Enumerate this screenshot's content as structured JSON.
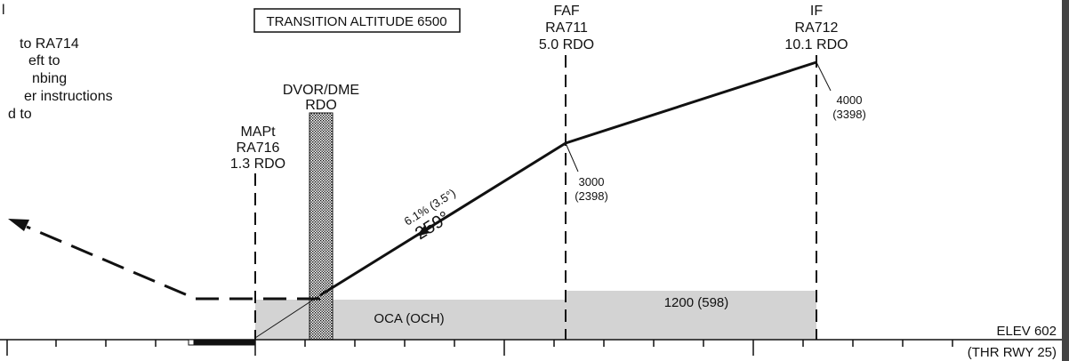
{
  "missed_approach_notes": {
    "lines": [
      "l",
      "to RA714",
      "eft to",
      "nbing",
      "er instructions",
      "d to"
    ]
  },
  "transition_altitude": "TRANSITION ALTITUDE 6500",
  "fixes": {
    "faf": {
      "lines": [
        "FAF",
        "RA711",
        "5.0 RDO"
      ]
    },
    "if": {
      "lines": [
        "IF",
        "RA712",
        "10.1 RDO"
      ]
    },
    "mapt": {
      "lines": [
        "MAPt",
        "RA716",
        "1.3 RDO"
      ]
    },
    "navaid": {
      "lines": [
        "DVOR/DME",
        "RDO"
      ]
    }
  },
  "altitudes": {
    "faf": {
      "lines": [
        "3000",
        "(2398)"
      ]
    },
    "if": {
      "lines": [
        "4000",
        "(3398)"
      ]
    }
  },
  "descent": {
    "gradient": "6.1% (3.5°)",
    "course": "259°"
  },
  "oca": {
    "label": "OCA (OCH)",
    "value": "1200 (598)"
  },
  "elevation": "ELEV 602",
  "threshold": "(THR RWY 25)",
  "colors": {
    "line": "#111111",
    "oca_shading": "#d3d3d3",
    "background": "#ffffff"
  },
  "icons": {
    "navaid_marker": "hatched-bar",
    "runway": "black-bar",
    "missed_approach_arrow": "arrowhead"
  }
}
